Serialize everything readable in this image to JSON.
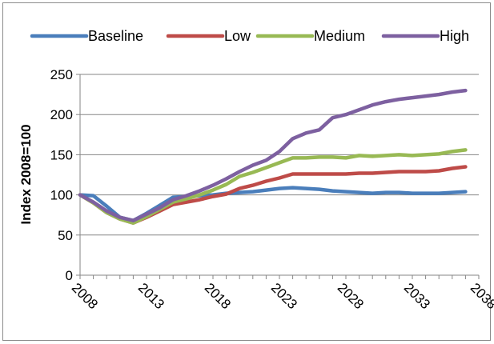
{
  "chart_data": {
    "type": "line",
    "title": "",
    "xlabel": "",
    "ylabel": "Index 2008=100",
    "ylim": [
      0,
      250
    ],
    "yticks": [
      "0",
      "50",
      "100",
      "150",
      "200",
      "250"
    ],
    "xlim": [
      2008,
      2038
    ],
    "xticks": [
      "2008",
      "2013",
      "2018",
      "2023",
      "2028",
      "2033",
      "2038"
    ],
    "grid": "horizontal",
    "legend_position": "top",
    "x": [
      2008,
      2009,
      2010,
      2011,
      2012,
      2013,
      2014,
      2015,
      2016,
      2017,
      2018,
      2019,
      2020,
      2021,
      2022,
      2023,
      2024,
      2025,
      2026,
      2027,
      2028,
      2029,
      2030,
      2031,
      2032,
      2033,
      2034,
      2035,
      2036,
      2037
    ],
    "series": [
      {
        "name": "Baseline",
        "color": "#4a7ebb",
        "values": [
          100,
          99,
          86,
          72,
          68,
          77,
          87,
          97,
          98,
          99,
          100,
          102,
          103,
          104,
          106,
          108,
          109,
          108,
          107,
          105,
          104,
          103,
          102,
          103,
          103,
          102,
          102,
          102,
          103,
          104
        ]
      },
      {
        "name": "Low",
        "color": "#be4b48",
        "values": [
          100,
          90,
          78,
          70,
          65,
          72,
          80,
          88,
          91,
          94,
          98,
          101,
          108,
          112,
          117,
          121,
          126,
          126,
          126,
          126,
          126,
          127,
          127,
          128,
          129,
          129,
          129,
          130,
          133,
          135
        ]
      },
      {
        "name": "Medium",
        "color": "#98b954",
        "values": [
          100,
          90,
          78,
          70,
          65,
          73,
          82,
          91,
          95,
          100,
          106,
          113,
          123,
          128,
          134,
          140,
          146,
          146,
          147,
          147,
          146,
          149,
          148,
          149,
          150,
          149,
          150,
          151,
          154,
          156
        ]
      },
      {
        "name": "High",
        "color": "#7d60a0",
        "values": [
          100,
          91,
          80,
          72,
          68,
          76,
          84,
          94,
          99,
          105,
          112,
          120,
          129,
          137,
          143,
          154,
          170,
          177,
          181,
          196,
          200,
          206,
          212,
          216,
          219,
          221,
          223,
          225,
          228,
          230
        ]
      }
    ]
  }
}
